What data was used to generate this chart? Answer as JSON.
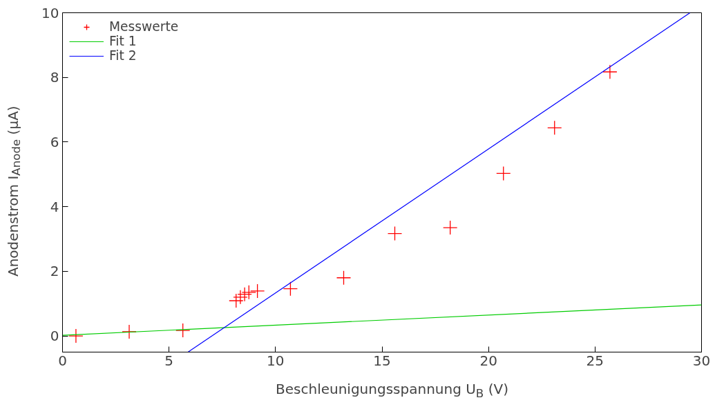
{
  "chart_data": {
    "type": "scatter",
    "xlabel": "Beschleunigungsspannung U$_{B}$ (V)",
    "ylabel": "Anodenstrom I$_{Anode}$ (µA)",
    "xlim": [
      0,
      30
    ],
    "ylim": [
      -0.5,
      10
    ],
    "xticks": [
      0,
      5,
      10,
      15,
      20,
      25,
      30
    ],
    "yticks": [
      0,
      2,
      4,
      6,
      8,
      10
    ],
    "grid": false,
    "legend": "top left",
    "series": [
      {
        "name": "Messwerte",
        "marker": "cross",
        "color": "#ff0000",
        "x": [
          0.63,
          3.13,
          5.65,
          8.15,
          8.35,
          8.55,
          8.75,
          9.15,
          10.7,
          13.2,
          15.6,
          18.2,
          20.7,
          23.1,
          25.7
        ],
        "values": [
          0,
          0.13,
          0.17,
          1.09,
          1.2,
          1.29,
          1.35,
          1.39,
          1.46,
          1.8,
          3.17,
          3.35,
          5.03,
          6.44,
          8.17
        ]
      },
      {
        "name": "Fit 1",
        "type": "line",
        "marker": "none",
        "color": "#00cc00",
        "x": [
          0,
          30
        ],
        "values": [
          0.02,
          0.96
        ]
      },
      {
        "name": "Fit 2",
        "type": "line",
        "marker": "none",
        "color": "#0000ff",
        "x": [
          5.89,
          29.46
        ],
        "values": [
          -0.5,
          10
        ]
      }
    ]
  }
}
